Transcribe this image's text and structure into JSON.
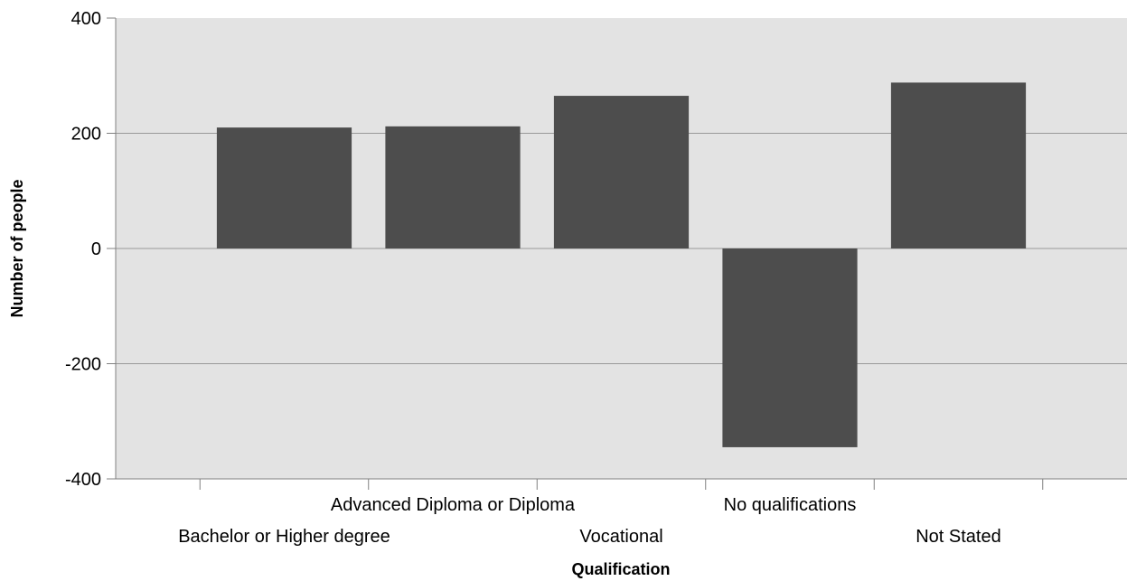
{
  "chart_data": {
    "type": "bar",
    "title": "",
    "xlabel": "Qualification",
    "ylabel": "Number of people",
    "categories": [
      "Bachelor or Higher degree",
      "Advanced Diploma or Diploma",
      "Vocational",
      "No qualifications",
      "Not Stated"
    ],
    "values": [
      210,
      212,
      265,
      -345,
      288
    ],
    "ylim": [
      -400,
      400
    ],
    "yticks": [
      -400,
      -200,
      0,
      200,
      400
    ],
    "grid": true,
    "legend": "none",
    "colors": {
      "bar": "#4d4d4d",
      "plot_background": "#e3e3e3",
      "gridline": "#999999",
      "axis": "#808080"
    }
  }
}
